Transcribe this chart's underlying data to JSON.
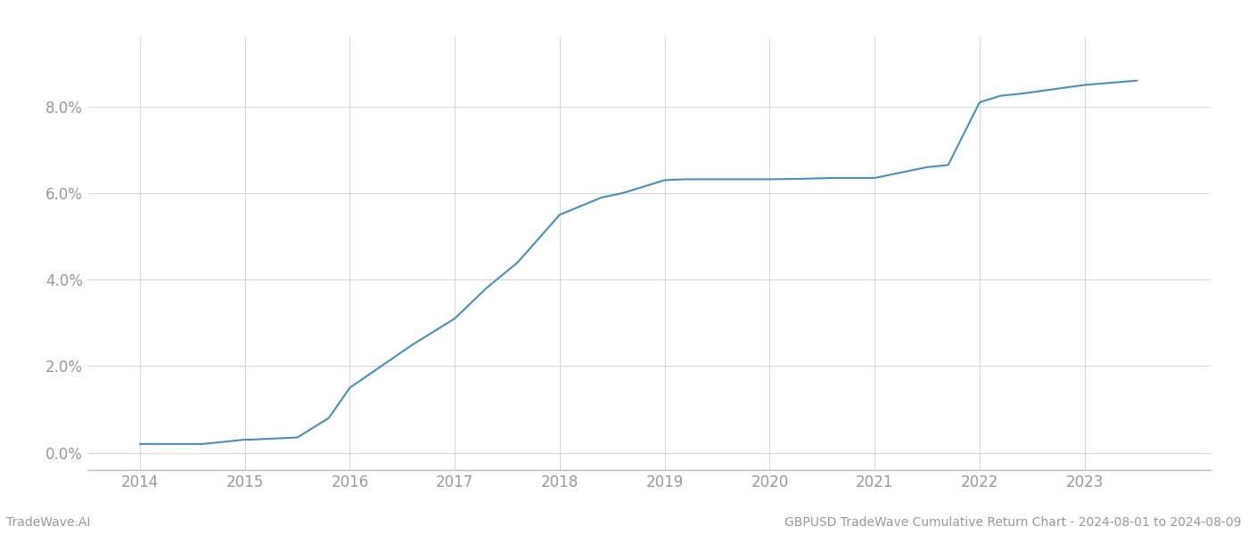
{
  "title": "GBPUSD TradeWave Cumulative Return Chart - 2024-08-01 to 2024-08-09",
  "watermark": "TradeWave.AI",
  "line_color": "#4a90b8",
  "background_color": "#ffffff",
  "grid_color": "#d0d0d0",
  "axis_color": "#999999",
  "x_values": [
    2014.0,
    2014.6,
    2015.0,
    2015.05,
    2015.5,
    2015.8,
    2016.0,
    2016.3,
    2016.6,
    2017.0,
    2017.3,
    2017.6,
    2018.0,
    2018.2,
    2018.4,
    2018.6,
    2019.0,
    2019.2,
    2019.5,
    2019.8,
    2020.0,
    2020.3,
    2020.6,
    2020.9,
    2021.0,
    2021.3,
    2021.5,
    2021.7,
    2022.0,
    2022.2,
    2022.4,
    2023.0,
    2023.5
  ],
  "y_values": [
    0.002,
    0.002,
    0.003,
    0.003,
    0.0035,
    0.008,
    0.015,
    0.02,
    0.025,
    0.031,
    0.038,
    0.044,
    0.055,
    0.057,
    0.059,
    0.06,
    0.063,
    0.0632,
    0.0632,
    0.0632,
    0.0632,
    0.0633,
    0.0635,
    0.0635,
    0.0635,
    0.065,
    0.066,
    0.0665,
    0.081,
    0.0825,
    0.083,
    0.085,
    0.086
  ],
  "xlim": [
    2013.5,
    2024.2
  ],
  "ylim": [
    -0.004,
    0.096
  ],
  "yticks": [
    0.0,
    0.02,
    0.04,
    0.06,
    0.08
  ],
  "xticks": [
    2014,
    2015,
    2016,
    2017,
    2018,
    2019,
    2020,
    2021,
    2022,
    2023
  ],
  "line_width": 1.5,
  "figsize": [
    14,
    6
  ],
  "dpi": 100
}
